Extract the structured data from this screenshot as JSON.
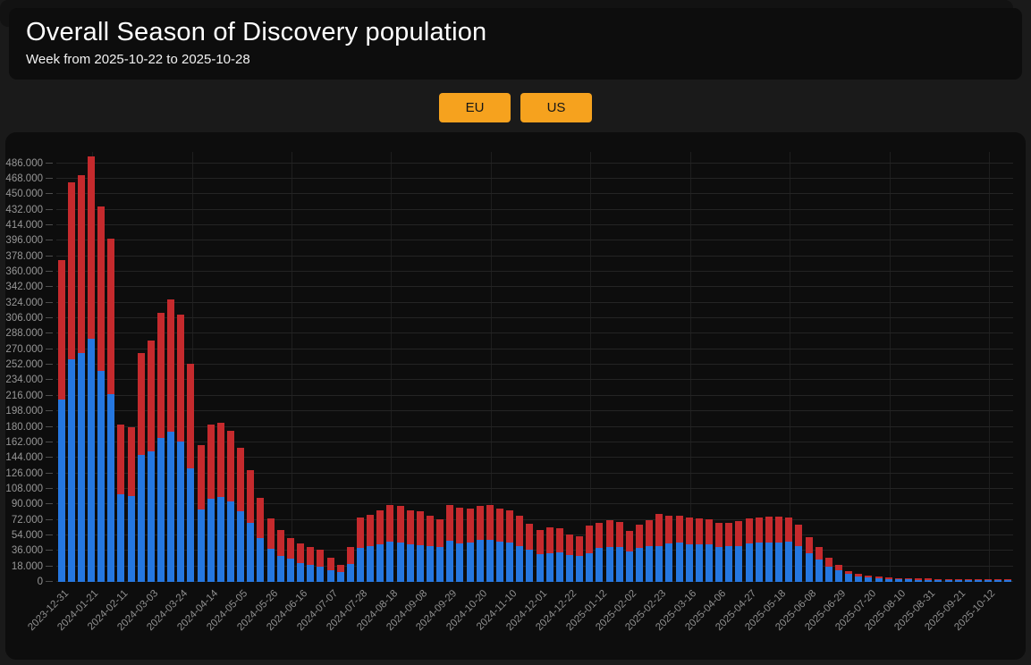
{
  "header": {
    "title": "Overall Season of Discovery population",
    "subtitle": "Week from 2025-10-22 to 2025-10-28"
  },
  "controls": {
    "eu_label": "EU",
    "us_label": "US",
    "button_color": "#f6a21e"
  },
  "chart_data": {
    "type": "bar",
    "stacked": true,
    "title": "Overall Season of Discovery population",
    "xlabel": "",
    "ylabel": "",
    "grid": true,
    "legend_position": "none",
    "ylim": [
      0,
      499000
    ],
    "y_tick_step": 18000,
    "y_tick_labels": [
      "0",
      "18.000",
      "36.000",
      "54.000",
      "72.000",
      "90.000",
      "108.000",
      "126.000",
      "144.000",
      "162.000",
      "180.000",
      "198.000",
      "216.000",
      "234.000",
      "252.000",
      "270.000",
      "288.000",
      "306.000",
      "324.000",
      "342.000",
      "360.000",
      "378.000",
      "396.000",
      "414.000",
      "432.000",
      "450.000",
      "468.000",
      "486.000"
    ],
    "x_label_every": 3,
    "x": [
      "2023-12-31",
      "2024-01-07",
      "2024-01-14",
      "2024-01-21",
      "2024-01-28",
      "2024-02-04",
      "2024-02-11",
      "2024-02-18",
      "2024-02-25",
      "2024-03-03",
      "2024-03-10",
      "2024-03-17",
      "2024-03-24",
      "2024-03-31",
      "2024-04-07",
      "2024-04-14",
      "2024-04-21",
      "2024-04-28",
      "2024-05-05",
      "2024-05-12",
      "2024-05-19",
      "2024-05-26",
      "2024-06-02",
      "2024-06-09",
      "2024-06-16",
      "2024-06-23",
      "2024-06-30",
      "2024-07-07",
      "2024-07-14",
      "2024-07-21",
      "2024-07-28",
      "2024-08-04",
      "2024-08-11",
      "2024-08-18",
      "2024-08-25",
      "2024-09-01",
      "2024-09-08",
      "2024-09-15",
      "2024-09-22",
      "2024-09-29",
      "2024-10-06",
      "2024-10-13",
      "2024-10-20",
      "2024-10-27",
      "2024-11-03",
      "2024-11-10",
      "2024-11-17",
      "2024-11-24",
      "2024-12-01",
      "2024-12-08",
      "2024-12-15",
      "2024-12-22",
      "2024-12-29",
      "2025-01-05",
      "2025-01-12",
      "2025-01-19",
      "2025-01-26",
      "2025-02-02",
      "2025-02-09",
      "2025-02-16",
      "2025-02-23",
      "2025-03-02",
      "2025-03-09",
      "2025-03-16",
      "2025-03-23",
      "2025-03-30",
      "2025-04-06",
      "2025-04-13",
      "2025-04-20",
      "2025-04-27",
      "2025-05-04",
      "2025-05-11",
      "2025-05-18",
      "2025-05-25",
      "2025-06-01",
      "2025-06-08",
      "2025-06-15",
      "2025-06-22",
      "2025-06-29",
      "2025-07-06",
      "2025-07-13",
      "2025-07-20",
      "2025-07-27",
      "2025-08-03",
      "2025-08-10",
      "2025-08-17",
      "2025-08-24",
      "2025-08-31",
      "2025-09-07",
      "2025-09-14",
      "2025-09-21",
      "2025-09-28",
      "2025-10-05",
      "2025-10-12",
      "2025-10-19",
      "2025-10-26"
    ],
    "series": [
      {
        "name": "blue",
        "color": "#2577e0",
        "values": [
          212000,
          258000,
          266000,
          282000,
          245000,
          218000,
          102000,
          100000,
          147000,
          151000,
          167000,
          174000,
          163000,
          132000,
          84000,
          96000,
          99000,
          93000,
          82000,
          68000,
          51000,
          38000,
          30000,
          27000,
          22000,
          20000,
          18000,
          14000,
          11000,
          21000,
          39000,
          42000,
          44000,
          47000,
          46000,
          44000,
          43000,
          41000,
          40000,
          48000,
          45000,
          46000,
          49000,
          49000,
          47000,
          46000,
          42000,
          37000,
          32000,
          33000,
          34000,
          31000,
          30000,
          33000,
          39000,
          40000,
          40000,
          35000,
          39000,
          41000,
          41000,
          45000,
          46000,
          44000,
          44000,
          44000,
          40000,
          41000,
          42000,
          45000,
          46000,
          46000,
          46000,
          47000,
          42000,
          33000,
          26000,
          18000,
          13000,
          9000,
          6000,
          5000,
          4000,
          3400,
          3000,
          2800,
          2600,
          2500,
          2400,
          2300,
          2200,
          2200,
          2100,
          2100,
          2000,
          2000
        ]
      },
      {
        "name": "red",
        "color": "#c52a2d",
        "values": [
          162000,
          206000,
          206000,
          212000,
          191000,
          180000,
          81000,
          80000,
          119000,
          129000,
          145000,
          154000,
          147000,
          121000,
          75000,
          87000,
          86000,
          82000,
          74000,
          62000,
          47000,
          36000,
          30000,
          24000,
          23000,
          20000,
          19000,
          14000,
          9000,
          19000,
          36000,
          36000,
          39000,
          42000,
          42000,
          39000,
          39000,
          36000,
          33000,
          41000,
          41000,
          39000,
          39000,
          40000,
          38000,
          37000,
          35000,
          30000,
          28000,
          30000,
          28000,
          24000,
          23000,
          32000,
          30000,
          32000,
          30000,
          24000,
          27000,
          31000,
          38000,
          32000,
          31000,
          31000,
          30000,
          29000,
          28000,
          28000,
          29000,
          29000,
          29000,
          30000,
          30000,
          28000,
          24000,
          19000,
          14000,
          10000,
          7000,
          3000,
          3000,
          2500,
          2000,
          1600,
          1500,
          1400,
          1400,
          1300,
          1200,
          1200,
          1200,
          1100,
          1100,
          1100,
          1100,
          1000
        ]
      }
    ]
  }
}
